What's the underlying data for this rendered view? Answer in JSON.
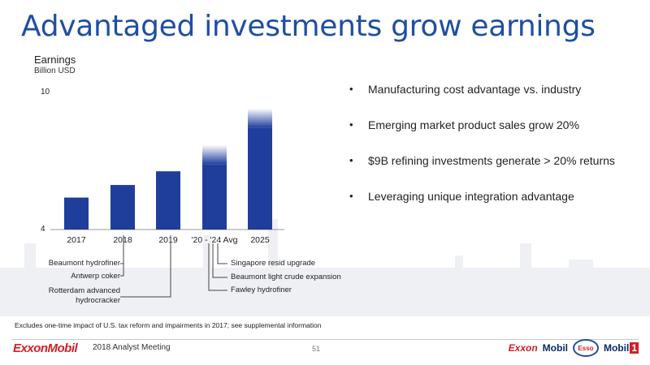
{
  "slide": {
    "title": "Advantaged investments grow earnings",
    "footnote": "Excludes one-time impact of  U.S. tax reform and impairments in 2017; see supplemental information",
    "footer_logo": "ExxonMobil",
    "meeting": "2018 Analyst Meeting",
    "page": "51",
    "brands": {
      "exxon": "Exxon",
      "mobil": "Mobil",
      "esso": "Esso",
      "mobil1": "Mobil",
      "mobil1_num": "1"
    }
  },
  "bullets": [
    "Manufacturing cost advantage vs. industry",
    "Emerging market product sales grow 20%",
    "$9B refining investments generate > 20% returns",
    "Leveraging unique integration advantage"
  ],
  "bullet_glyph": "•",
  "chart_data": {
    "type": "bar",
    "ylabel": "Earnings",
    "yunit": "Billion USD",
    "ylim": [
      4,
      10
    ],
    "yticks": [
      "4",
      "10"
    ],
    "categories": [
      "2017",
      "2018",
      "2019",
      "'20 - '24 Avg",
      "2025"
    ],
    "values": [
      5.4,
      5.95,
      6.55,
      7.7,
      9.3
    ],
    "faded_top": [
      false,
      false,
      false,
      true,
      true
    ],
    "bar_color": "#1f3e9c",
    "annotations": {
      "left": [
        "Beaumont hydrofiner",
        "Antwerp coker",
        "Rotterdam advanced",
        "hydrocracker"
      ],
      "right": [
        "Singapore resid upgrade",
        "Beaumont light crude expansion",
        "Fawley hydrofiner"
      ]
    }
  }
}
